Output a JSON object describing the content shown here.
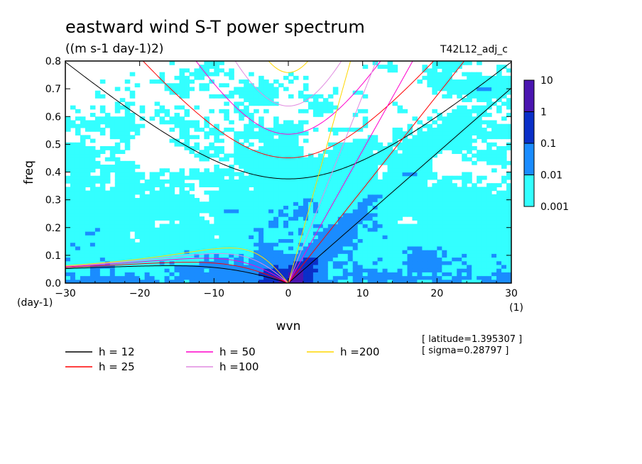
{
  "chart_data": {
    "type": "heatmap",
    "title": "eastward wind S-T power spectrum",
    "subtitle": "((m s-1 day-1)2)",
    "experiment": "T42L12_adj_c",
    "xlabel": "wvn",
    "ylabel": "freq",
    "x_unit": "(1)",
    "y_unit": "(day-1)",
    "xlim": [
      -30,
      30
    ],
    "ylim": [
      0,
      0.8
    ],
    "xticks": [
      -30,
      -20,
      -10,
      0,
      10,
      20,
      30
    ],
    "yticks": [
      0.0,
      0.1,
      0.2,
      0.3,
      0.4,
      0.5,
      0.6,
      0.7,
      0.8
    ],
    "colorbar": {
      "levels": [
        "0.001",
        "0.01",
        "0.1",
        "1",
        "10"
      ],
      "colors": [
        "#33ffff",
        "#1a8cff",
        "#0a2fc8",
        "#4a15b0"
      ]
    },
    "dispersion_curves": [
      {
        "label": "h = 12",
        "h": 12,
        "color": "#000000"
      },
      {
        "label": "h = 25",
        "h": 25,
        "color": "#ff0000"
      },
      {
        "label": "h = 50",
        "h": 50,
        "color": "#ff00cc"
      },
      {
        "label": "h =100",
        "h": 100,
        "color": "#e08ae0"
      },
      {
        "label": "h =200",
        "h": 200,
        "color": "#ffd700"
      }
    ],
    "info": {
      "latitude": "[ latitude=1.395307 ]",
      "sigma": "[ sigma=0.28797 ]"
    }
  }
}
